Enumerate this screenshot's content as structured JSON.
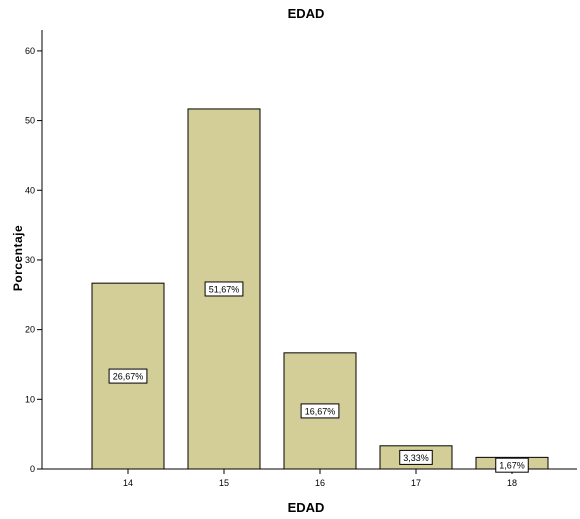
{
  "chart_data": {
    "type": "bar",
    "title": "EDAD",
    "xlabel": "EDAD",
    "ylabel": "Porcentaje",
    "categories": [
      "14",
      "15",
      "16",
      "17",
      "18"
    ],
    "values": [
      26.67,
      51.67,
      16.67,
      3.33,
      1.67
    ],
    "data_labels": [
      "26,67%",
      "51,67%",
      "16,67%",
      "3,33%",
      "1,67%"
    ],
    "ylim": [
      0,
      63
    ],
    "yticks": [
      0,
      10,
      20,
      30,
      40,
      50,
      60
    ],
    "bar_color": "#D3CE98",
    "bar_stroke": "#000000",
    "grid": false
  }
}
